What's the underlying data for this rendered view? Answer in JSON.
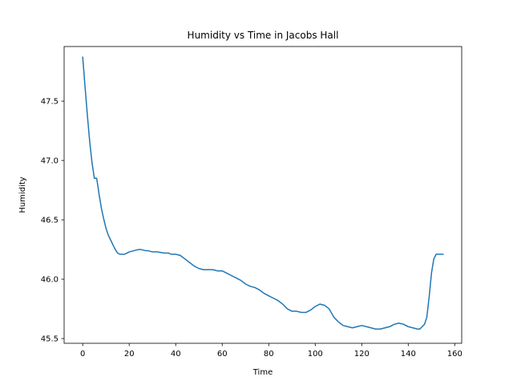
{
  "chart_data": {
    "type": "line",
    "title": "Humidity vs Time in Jacobs Hall",
    "xlabel": "Time",
    "ylabel": "Humidity",
    "xlim": [
      -8,
      163
    ],
    "ylim": [
      45.46,
      47.96
    ],
    "xticks": [
      0,
      20,
      40,
      60,
      80,
      100,
      120,
      140,
      160
    ],
    "yticks": [
      45.5,
      46.0,
      46.5,
      47.0,
      47.5
    ],
    "ytick_labels": [
      "45.5",
      "46.0",
      "46.5",
      "47.0",
      "47.5"
    ],
    "grid": false,
    "legend": "none",
    "color": "#1f77b4",
    "series": [
      {
        "x": [
          0,
          1,
          2,
          3,
          4,
          5,
          6,
          7,
          8,
          9,
          10,
          11,
          12,
          13,
          14,
          15,
          16,
          17,
          18,
          19,
          20,
          22,
          24,
          25,
          27,
          28,
          30,
          32,
          35,
          37,
          38,
          40,
          42,
          44,
          46,
          48,
          50,
          52,
          54,
          56,
          58,
          60,
          62,
          64,
          66,
          68,
          70,
          72,
          74,
          76,
          78,
          80,
          82,
          84,
          86,
          88,
          90,
          92,
          94,
          96,
          98,
          100,
          102,
          104,
          106,
          108,
          110,
          112,
          114,
          116,
          118,
          120,
          122,
          124,
          126,
          128,
          130,
          132,
          134,
          136,
          138,
          140,
          142,
          144,
          145,
          146,
          147,
          148,
          149,
          150,
          151,
          152,
          153,
          154,
          155
        ],
        "y": [
          47.87,
          47.62,
          47.38,
          47.16,
          46.98,
          46.85,
          46.85,
          46.72,
          46.6,
          46.51,
          46.43,
          46.37,
          46.33,
          46.29,
          46.25,
          46.22,
          46.21,
          46.21,
          46.21,
          46.22,
          46.23,
          46.24,
          46.25,
          46.25,
          46.24,
          46.24,
          46.23,
          46.23,
          46.22,
          46.22,
          46.21,
          46.21,
          46.2,
          46.17,
          46.14,
          46.11,
          46.09,
          46.08,
          46.08,
          46.08,
          46.07,
          46.07,
          46.05,
          46.03,
          46.01,
          45.99,
          45.96,
          45.94,
          45.93,
          45.91,
          45.88,
          45.86,
          45.84,
          45.82,
          45.79,
          45.75,
          45.73,
          45.73,
          45.72,
          45.72,
          45.74,
          45.77,
          45.79,
          45.78,
          45.75,
          45.68,
          45.64,
          45.61,
          45.6,
          45.59,
          45.6,
          45.61,
          45.6,
          45.59,
          45.58,
          45.58,
          45.59,
          45.6,
          45.62,
          45.63,
          45.62,
          45.6,
          45.59,
          45.58,
          45.58,
          45.6,
          45.62,
          45.68,
          45.85,
          46.05,
          46.17,
          46.21,
          46.21,
          46.21,
          46.21
        ]
      }
    ]
  }
}
